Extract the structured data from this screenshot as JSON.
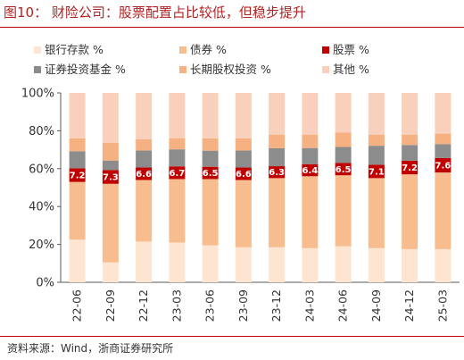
{
  "header": {
    "title": "图10：  财险公司：股票配置占比较低，但稳步提升"
  },
  "footer": {
    "source": "资料来源：Wind，浙商证券研究所"
  },
  "chart_data": {
    "type": "bar",
    "stacked": true,
    "title": "",
    "xlabel": "",
    "ylabel": "",
    "ylim": [
      0,
      100
    ],
    "yticks": [
      "0%",
      "20%",
      "40%",
      "60%",
      "80%",
      "100%"
    ],
    "legend_position": "top",
    "categories": [
      "22-06",
      "22-09",
      "22-12",
      "23-03",
      "23-06",
      "23-09",
      "23-12",
      "24-03",
      "24-06",
      "24-09",
      "24-12",
      "25-03"
    ],
    "series": [
      {
        "name": "银行存款 %",
        "color": "#fde5d1",
        "values": [
          22.5,
          10.5,
          21.5,
          21,
          19.5,
          18.5,
          18.5,
          18,
          19,
          18,
          17.5,
          17.5
        ]
      },
      {
        "name": "债券 %",
        "color": "#f8bd8f",
        "values": [
          30.5,
          41.5,
          32.5,
          33.5,
          35,
          35.5,
          36.5,
          38,
          37.5,
          37,
          39.5,
          40.5
        ]
      },
      {
        "name": "股票 %",
        "color": "#c00000",
        "values": [
          7.2,
          7.3,
          6.6,
          6.7,
          6.5,
          6.6,
          6.3,
          6.4,
          6.5,
          7.1,
          7.2,
          7.6
        ]
      },
      {
        "name": "证券投资基金 %",
        "color": "#8c8c8c",
        "values": [
          9,
          5,
          9,
          9,
          8.5,
          9,
          9.5,
          8.5,
          8.5,
          10,
          8.3,
          7.4
        ]
      },
      {
        "name": "长期股权投资 %",
        "color": "#f6b183",
        "values": [
          6.8,
          9.4,
          5.9,
          5.9,
          6.5,
          6.4,
          7.2,
          7.1,
          7.5,
          5.9,
          5.5,
          5.5
        ]
      },
      {
        "name": "其他 %",
        "color": "#f9d0bc",
        "values": [
          24,
          26.3,
          24.5,
          23.9,
          24,
          24,
          22,
          22,
          21,
          22,
          22,
          21.5
        ]
      }
    ],
    "data_labels_series": "股票 %"
  }
}
